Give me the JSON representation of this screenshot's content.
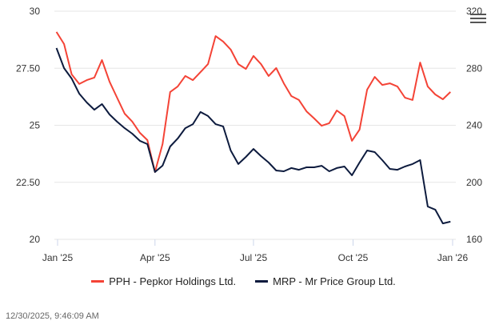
{
  "chart_data": {
    "type": "line",
    "x": [
      "2024-12-31",
      "2025-01-07",
      "2025-01-14",
      "2025-01-21",
      "2025-01-28",
      "2025-02-04",
      "2025-02-11",
      "2025-02-18",
      "2025-02-25",
      "2025-03-04",
      "2025-03-11",
      "2025-03-18",
      "2025-03-25",
      "2025-04-01",
      "2025-04-08",
      "2025-04-15",
      "2025-04-22",
      "2025-04-29",
      "2025-05-06",
      "2025-05-13",
      "2025-05-20",
      "2025-05-27",
      "2025-06-03",
      "2025-06-10",
      "2025-06-17",
      "2025-06-24",
      "2025-07-01",
      "2025-07-08",
      "2025-07-15",
      "2025-07-22",
      "2025-07-29",
      "2025-08-05",
      "2025-08-12",
      "2025-08-19",
      "2025-08-26",
      "2025-09-02",
      "2025-09-09",
      "2025-09-16",
      "2025-09-23",
      "2025-09-30",
      "2025-10-07",
      "2025-10-14",
      "2025-10-21",
      "2025-10-28",
      "2025-11-04",
      "2025-11-11",
      "2025-11-18",
      "2025-11-25",
      "2025-12-02",
      "2025-12-09",
      "2025-12-16",
      "2025-12-23",
      "2025-12-30"
    ],
    "series": [
      {
        "name": "PPH - Pepkor Holdings Ltd.",
        "axis": "left",
        "color": "#f44336",
        "values": [
          29.09,
          28.56,
          27.23,
          26.81,
          26.98,
          27.09,
          27.86,
          26.91,
          26.21,
          25.51,
          25.16,
          24.67,
          24.35,
          22.95,
          24.18,
          26.46,
          26.7,
          27.16,
          26.98,
          27.33,
          27.68,
          28.91,
          28.67,
          28.32,
          27.68,
          27.47,
          28.04,
          27.68,
          27.16,
          27.51,
          26.84,
          26.28,
          26.11,
          25.61,
          25.3,
          24.98,
          25.09,
          25.65,
          25.4,
          24.32,
          24.81,
          26.56,
          27.12,
          26.77,
          26.84,
          26.7,
          26.21,
          26.11,
          27.75,
          26.7,
          26.35,
          26.14,
          26.46
        ]
      },
      {
        "name": "MRP - Mr Price Group Ltd.",
        "axis": "right",
        "color": "#0d1b3e",
        "values": [
          294.2,
          280.1,
          272.8,
          262.2,
          256.0,
          250.9,
          254.9,
          247.6,
          242.5,
          238.0,
          234.1,
          229.1,
          226.8,
          207.2,
          211.7,
          225.1,
          230.7,
          238.0,
          240.8,
          249.3,
          246.5,
          240.8,
          239.2,
          222.3,
          212.8,
          217.8,
          223.4,
          218.4,
          213.9,
          208.3,
          207.7,
          210.0,
          208.8,
          210.5,
          210.5,
          211.6,
          207.7,
          210.0,
          211.1,
          204.9,
          213.9,
          222.3,
          221.2,
          215.6,
          209.4,
          208.8,
          211.1,
          212.8,
          215.6,
          183.0,
          180.8,
          171.2,
          172.4
        ]
      }
    ],
    "y_left": {
      "range": [
        20,
        30
      ],
      "ticks": [
        "20",
        "22.50",
        "25",
        "27.50",
        "30"
      ]
    },
    "y_right": {
      "range": [
        160,
        320
      ],
      "ticks": [
        "160",
        "200",
        "240",
        "280",
        "320"
      ]
    },
    "x_ticks": [
      {
        "date": "2025-01-01",
        "label": "Jan '25"
      },
      {
        "date": "2025-04-01",
        "label": "Apr '25"
      },
      {
        "date": "2025-07-01",
        "label": "Jul '25"
      },
      {
        "date": "2025-10-01",
        "label": "Oct '25"
      },
      {
        "date": "2026-01-01",
        "label": "Jan '26"
      }
    ],
    "grid": true,
    "legend_placement": "bottom"
  },
  "timestamp": "12/30/2025, 9:46:09 AM",
  "menu_icon": "hamburger-menu-icon"
}
